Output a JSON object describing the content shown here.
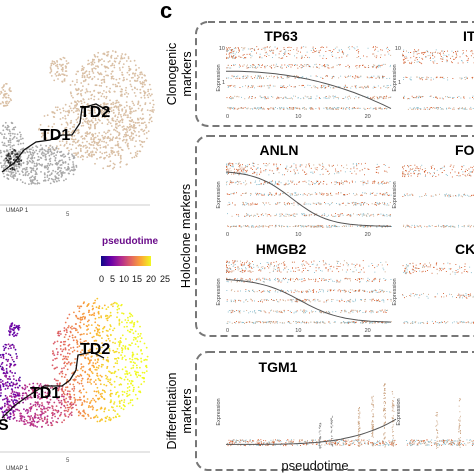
{
  "panel": {
    "letter": "c"
  },
  "umap_top": {
    "axis_label": "UMAP 1",
    "tick": "5",
    "td2": "TD2",
    "td1": "TD1",
    "colors": {
      "beige": "#d9bfa4",
      "grey": "#a9a9a9"
    }
  },
  "umap_bottom": {
    "axis_label": "UMAP 1",
    "tick": "5",
    "td2": "TD2",
    "td1": "TD1",
    "td_left": "S"
  },
  "legend": {
    "title": "pseudotime",
    "ticks": [
      "0",
      "5",
      "10",
      "15",
      "20",
      "25"
    ],
    "gradient": [
      "#0d0887",
      "#6a00a8",
      "#b12a90",
      "#e16462",
      "#fca636",
      "#f0f921"
    ]
  },
  "groups": [
    {
      "label": "Clonogenic markers"
    },
    {
      "label": "Holoclone markers"
    },
    {
      "label": "Differentiation markers"
    }
  ],
  "genes": {
    "tp63": "TP63",
    "it": "IT",
    "anln": "ANLN",
    "fo": "FO",
    "hmgb2": "HMGB2",
    "ck": "CK",
    "tgm1": "TGM1"
  },
  "axes": {
    "ylabel": "Expression",
    "xticks": [
      "0",
      "10",
      "20"
    ],
    "yticks": [
      "10",
      "1"
    ],
    "xtitle": "pseudotime"
  },
  "point_colors": {
    "orange": "#d2521f",
    "blue": "#7fb7c9",
    "tan": "#c9a17e",
    "grey": "#8c8c8c"
  }
}
